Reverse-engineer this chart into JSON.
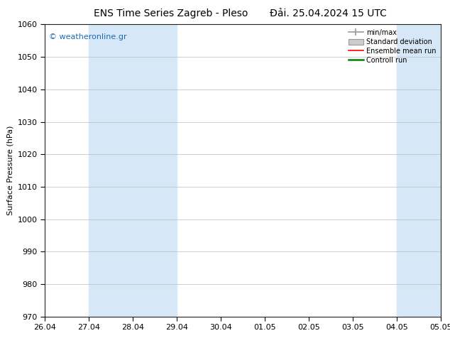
{
  "title_left": "ENS Time Series Zagreb - Pleso",
  "title_right": "Đải. 25.04.2024 15 UTC",
  "ylabel": "Surface Pressure (hPa)",
  "ylim": [
    970,
    1060
  ],
  "yticks": [
    970,
    980,
    990,
    1000,
    1010,
    1020,
    1030,
    1040,
    1050,
    1060
  ],
  "xtick_labels": [
    "26.04",
    "27.04",
    "28.04",
    "29.04",
    "30.04",
    "01.05",
    "02.05",
    "03.05",
    "04.05",
    "05.05"
  ],
  "n_xticks": 10,
  "shaded_bands": [
    {
      "xstart": 1,
      "xend": 3,
      "color": "#d6e8f7"
    },
    {
      "xstart": 8,
      "xend": 9,
      "color": "#d6e8f7"
    },
    {
      "xstart": 9,
      "xend": 10,
      "color": "#d6e8f7"
    }
  ],
  "legend_labels": [
    "min/max",
    "Standard deviation",
    "Ensemble mean run",
    "Controll run"
  ],
  "watermark": "© weatheronline.gr",
  "watermark_color": "#1a6cb5",
  "bg_color": "#ffffff",
  "plot_bg_color": "#ffffff",
  "border_color": "#222222",
  "title_fontsize": 10,
  "axis_fontsize": 8,
  "tick_fontsize": 8
}
